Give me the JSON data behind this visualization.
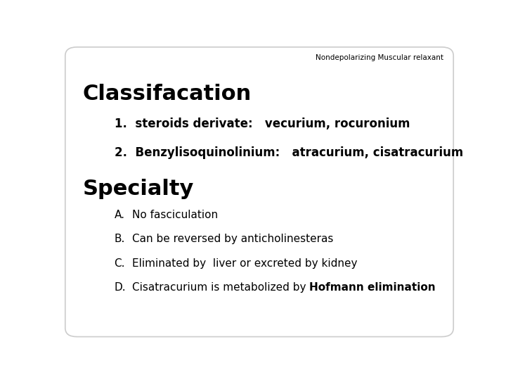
{
  "background_color": "#ffffff",
  "border_color": "#cccccc",
  "header_text": "Nondepolarizing Muscular relaxant",
  "header_fontsize": 7.5,
  "header_color": "#000000",
  "section1_title": "Classifacation",
  "section1_fontsize": 22,
  "section2_title": "Specialty",
  "section2_fontsize": 22,
  "items_class": [
    {
      "num": "1.  ",
      "label": "steroids derivate:   vecurium, rocuronium"
    },
    {
      "num": "2.  ",
      "label": "Benzylisoquinolinium:   atracurium, cisatracurium"
    }
  ],
  "items_class_fontsize": 12,
  "items_spec": [
    {
      "num": "A.",
      "label": "No fasciculation"
    },
    {
      "num": "B.",
      "label": "Can be reversed by anticholinesteras"
    },
    {
      "num": "C.",
      "label": "Eliminated by  liver or excreted by kidney"
    },
    {
      "num": "D.",
      "label_plain": "Cisatracurium is metabolized by ",
      "label_bold": "Hofmann elimination"
    }
  ],
  "items_spec_fontsize": 11,
  "fig_width": 7.2,
  "fig_height": 5.4,
  "dpi": 100
}
